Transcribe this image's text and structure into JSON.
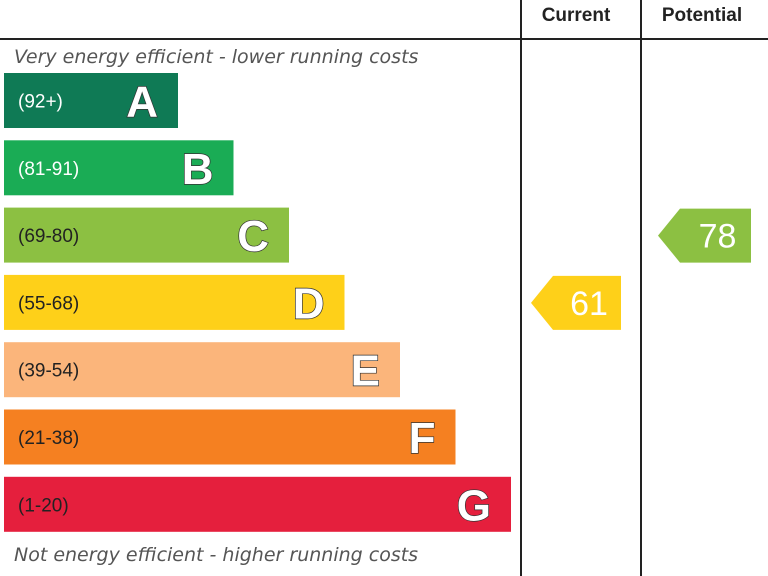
{
  "chart_data": {
    "type": "bar",
    "columns": {
      "current": "Current",
      "potential": "Potential"
    },
    "top_caption": "Very energy efficient - lower running costs",
    "bottom_caption": "Not energy efficient - higher running costs",
    "bands": [
      {
        "letter": "A",
        "range": "(92+)",
        "color": "#0f7a55",
        "range_color": "#ffffff",
        "letter_color": "#ffffff"
      },
      {
        "letter": "B",
        "range": "(81-91)",
        "color": "#1aac55",
        "range_color": "#ffffff",
        "letter_color": "#ffffff"
      },
      {
        "letter": "C",
        "range": "(69-80)",
        "color": "#8cc042",
        "range_color": "#222222",
        "letter_color": "#ffffff"
      },
      {
        "letter": "D",
        "range": "(55-68)",
        "color": "#fed019",
        "range_color": "#222222",
        "letter_color": "#ffffff"
      },
      {
        "letter": "E",
        "range": "(39-54)",
        "color": "#fbb57b",
        "range_color": "#222222",
        "letter_color": "#ffffff"
      },
      {
        "letter": "F",
        "range": "(21-38)",
        "color": "#f58021",
        "range_color": "#222222",
        "letter_color": "#ffffff"
      },
      {
        "letter": "G",
        "range": "(1-20)",
        "color": "#e51f3d",
        "range_color": "#222222",
        "letter_color": "#ffffff"
      }
    ],
    "ratings": {
      "current": {
        "value": 61,
        "band": "D",
        "color": "#fed019"
      },
      "potential": {
        "value": 78,
        "band": "C",
        "color": "#8cc042"
      }
    }
  }
}
